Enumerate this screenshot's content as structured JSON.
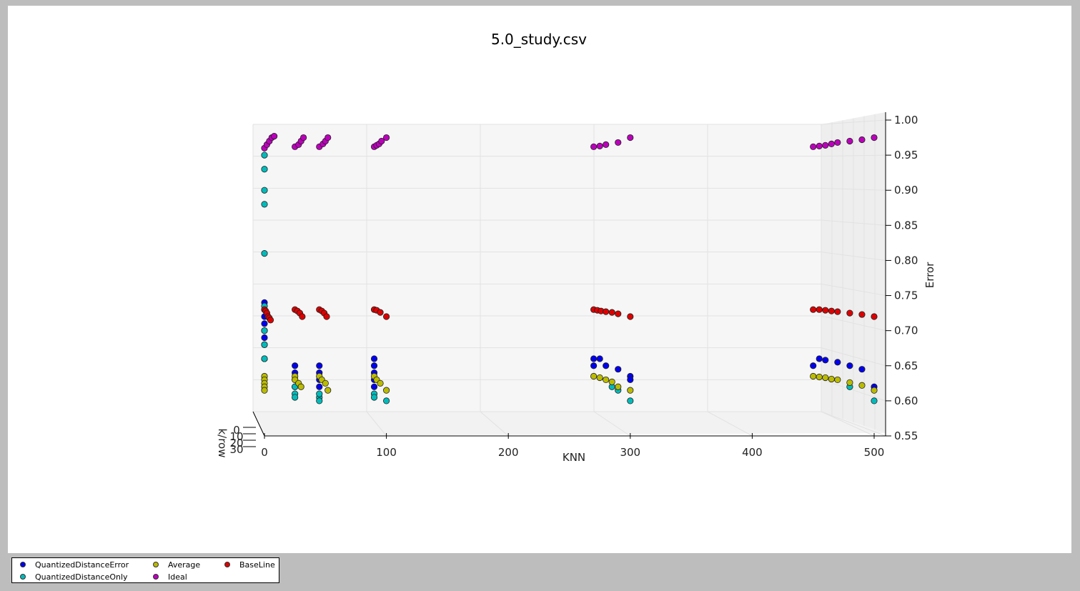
{
  "chart_data": {
    "type": "scatter",
    "projection": "3d",
    "title": "5.0_study.csv",
    "xlabel": "KNN",
    "ylabel": "k/row",
    "zlabel": "Error",
    "xlim": [
      0,
      500
    ],
    "zlim": [
      0.55,
      1.0
    ],
    "x_ticks": [
      "0",
      "100",
      "200",
      "300",
      "400",
      "500"
    ],
    "y_ticks": [
      "0",
      "10",
      "20",
      "30"
    ],
    "z_ticks": [
      "0.55",
      "0.60",
      "0.65",
      "0.70",
      "0.75",
      "0.80",
      "0.85",
      "0.90",
      "0.95",
      "1.00"
    ],
    "legend_position": "bottom-left",
    "series": [
      {
        "name": "QuantizedDistanceError",
        "color": "#0000ee",
        "points": [
          [
            0,
            0.74
          ],
          [
            0,
            0.73
          ],
          [
            0,
            0.72
          ],
          [
            0,
            0.71
          ],
          [
            0,
            0.7
          ],
          [
            0,
            0.69
          ],
          [
            0,
            0.68
          ],
          [
            0,
            0.66
          ],
          [
            25,
            0.65
          ],
          [
            25,
            0.64
          ],
          [
            25,
            0.63
          ],
          [
            25,
            0.62
          ],
          [
            45,
            0.65
          ],
          [
            45,
            0.64
          ],
          [
            45,
            0.63
          ],
          [
            45,
            0.62
          ],
          [
            90,
            0.66
          ],
          [
            90,
            0.65
          ],
          [
            90,
            0.64
          ],
          [
            90,
            0.63
          ],
          [
            90,
            0.62
          ],
          [
            270,
            0.65
          ],
          [
            270,
            0.66
          ],
          [
            275,
            0.66
          ],
          [
            280,
            0.65
          ],
          [
            290,
            0.645
          ],
          [
            300,
            0.635
          ],
          [
            300,
            0.63
          ],
          [
            450,
            0.65
          ],
          [
            455,
            0.66
          ],
          [
            460,
            0.658
          ],
          [
            470,
            0.655
          ],
          [
            480,
            0.65
          ],
          [
            490,
            0.645
          ],
          [
            500,
            0.62
          ]
        ]
      },
      {
        "name": "QuantizedDistanceOnly",
        "color": "#00bbbb",
        "points": [
          [
            0,
            0.95
          ],
          [
            0,
            0.93
          ],
          [
            0,
            0.9
          ],
          [
            0,
            0.88
          ],
          [
            0,
            0.81
          ],
          [
            0,
            0.735
          ],
          [
            0,
            0.7
          ],
          [
            0,
            0.68
          ],
          [
            0,
            0.66
          ],
          [
            25,
            0.61
          ],
          [
            25,
            0.62
          ],
          [
            25,
            0.605
          ],
          [
            45,
            0.605
          ],
          [
            45,
            0.61
          ],
          [
            45,
            0.6
          ],
          [
            90,
            0.61
          ],
          [
            90,
            0.605
          ],
          [
            100,
            0.6
          ],
          [
            285,
            0.62
          ],
          [
            290,
            0.615
          ],
          [
            300,
            0.6
          ],
          [
            480,
            0.62
          ],
          [
            500,
            0.6
          ]
        ]
      },
      {
        "name": "Average",
        "color": "#bbbb00",
        "points": [
          [
            0,
            0.635
          ],
          [
            0,
            0.63
          ],
          [
            0,
            0.625
          ],
          [
            0,
            0.62
          ],
          [
            0,
            0.615
          ],
          [
            25,
            0.635
          ],
          [
            25,
            0.63
          ],
          [
            28,
            0.625
          ],
          [
            30,
            0.62
          ],
          [
            45,
            0.635
          ],
          [
            47,
            0.63
          ],
          [
            50,
            0.625
          ],
          [
            52,
            0.615
          ],
          [
            90,
            0.635
          ],
          [
            92,
            0.63
          ],
          [
            95,
            0.625
          ],
          [
            100,
            0.615
          ],
          [
            270,
            0.635
          ],
          [
            275,
            0.633
          ],
          [
            280,
            0.63
          ],
          [
            285,
            0.627
          ],
          [
            290,
            0.62
          ],
          [
            300,
            0.615
          ],
          [
            450,
            0.635
          ],
          [
            455,
            0.634
          ],
          [
            460,
            0.633
          ],
          [
            465,
            0.631
          ],
          [
            470,
            0.63
          ],
          [
            480,
            0.626
          ],
          [
            490,
            0.622
          ],
          [
            500,
            0.615
          ]
        ]
      },
      {
        "name": "Ideal",
        "color": "#bb00bb",
        "points": [
          [
            0,
            0.96
          ],
          [
            2,
            0.965
          ],
          [
            4,
            0.97
          ],
          [
            6,
            0.975
          ],
          [
            8,
            0.977
          ],
          [
            25,
            0.962
          ],
          [
            28,
            0.965
          ],
          [
            30,
            0.97
          ],
          [
            32,
            0.975
          ],
          [
            45,
            0.962
          ],
          [
            48,
            0.966
          ],
          [
            50,
            0.97
          ],
          [
            52,
            0.975
          ],
          [
            90,
            0.962
          ],
          [
            92,
            0.964
          ],
          [
            94,
            0.966
          ],
          [
            96,
            0.97
          ],
          [
            100,
            0.975
          ],
          [
            270,
            0.962
          ],
          [
            275,
            0.963
          ],
          [
            280,
            0.965
          ],
          [
            290,
            0.968
          ],
          [
            300,
            0.975
          ],
          [
            450,
            0.962
          ],
          [
            455,
            0.963
          ],
          [
            460,
            0.964
          ],
          [
            465,
            0.966
          ],
          [
            470,
            0.968
          ],
          [
            480,
            0.97
          ],
          [
            490,
            0.972
          ],
          [
            500,
            0.975
          ]
        ]
      },
      {
        "name": "BaseLine",
        "color": "#dd0000",
        "points": [
          [
            0,
            0.73
          ],
          [
            1,
            0.728
          ],
          [
            2,
            0.725
          ],
          [
            3,
            0.72
          ],
          [
            4,
            0.718
          ],
          [
            5,
            0.715
          ],
          [
            25,
            0.73
          ],
          [
            27,
            0.728
          ],
          [
            29,
            0.725
          ],
          [
            31,
            0.72
          ],
          [
            45,
            0.73
          ],
          [
            47,
            0.728
          ],
          [
            49,
            0.725
          ],
          [
            51,
            0.72
          ],
          [
            90,
            0.73
          ],
          [
            92,
            0.729
          ],
          [
            95,
            0.726
          ],
          [
            100,
            0.72
          ],
          [
            270,
            0.73
          ],
          [
            273,
            0.729
          ],
          [
            276,
            0.728
          ],
          [
            280,
            0.727
          ],
          [
            285,
            0.726
          ],
          [
            290,
            0.724
          ],
          [
            300,
            0.72
          ],
          [
            450,
            0.73
          ],
          [
            455,
            0.73
          ],
          [
            460,
            0.729
          ],
          [
            465,
            0.728
          ],
          [
            470,
            0.727
          ],
          [
            480,
            0.725
          ],
          [
            490,
            0.723
          ],
          [
            500,
            0.72
          ]
        ]
      }
    ]
  },
  "legend": {
    "items": [
      {
        "label": "QuantizedDistanceError",
        "color": "#0000ee"
      },
      {
        "label": "QuantizedDistanceOnly",
        "color": "#00bbbb"
      },
      {
        "label": "Average",
        "color": "#bbbb00"
      },
      {
        "label": "Ideal",
        "color": "#bb00bb"
      },
      {
        "label": "BaseLine",
        "color": "#dd0000"
      }
    ]
  }
}
